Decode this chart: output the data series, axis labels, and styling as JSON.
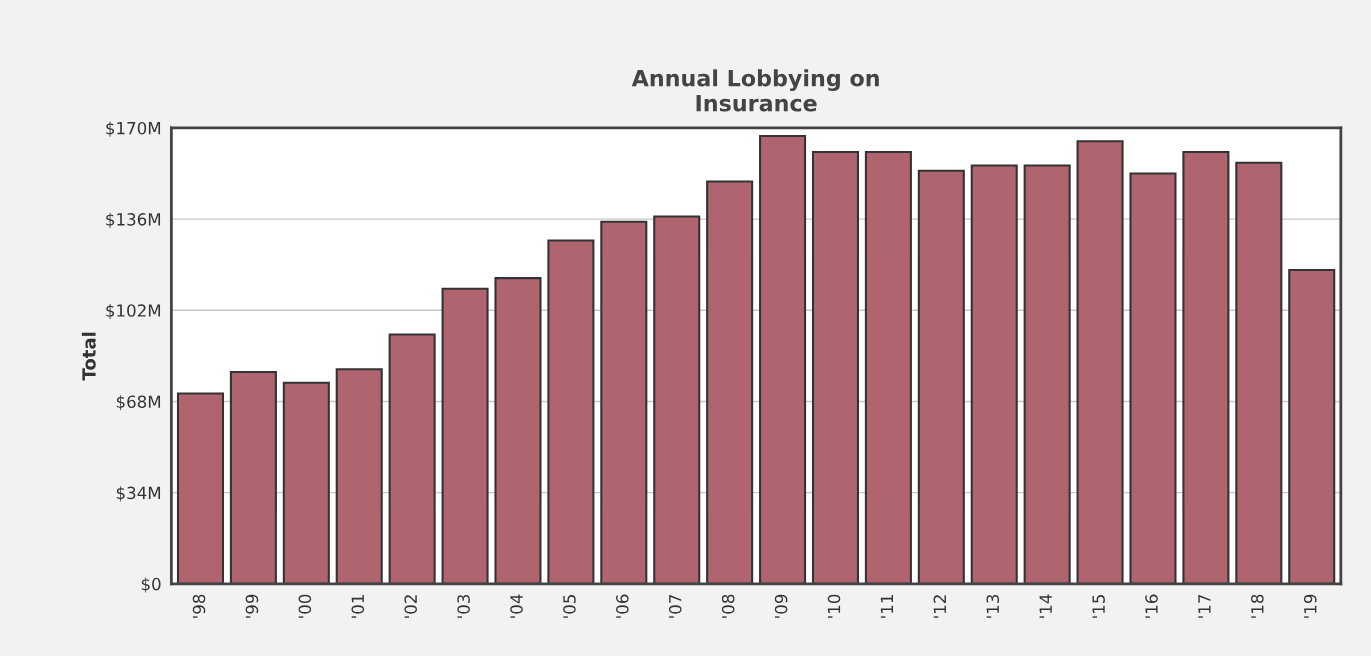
{
  "chart_data": {
    "type": "bar",
    "title": "Annual Lobbying on\nInsurance",
    "ylabel": "Total",
    "categories": [
      "'98",
      "'99",
      "'00",
      "'01",
      "'02",
      "'03",
      "'04",
      "'05",
      "'06",
      "'07",
      "'08",
      "'09",
      "'10",
      "'11",
      "'12",
      "'13",
      "'14",
      "'15",
      "'16",
      "'17",
      "'18",
      "'19"
    ],
    "values": [
      71,
      79,
      75,
      80,
      93,
      110,
      114,
      128,
      135,
      137,
      150,
      167,
      161,
      161,
      154,
      156,
      156,
      165,
      153,
      161,
      157,
      117
    ],
    "color": "#b06470",
    "ylim": [
      0,
      170
    ],
    "yticks": [
      {
        "value": 0,
        "label": "$0"
      },
      {
        "value": 34,
        "label": "$34M"
      },
      {
        "value": 68,
        "label": "$68M"
      },
      {
        "value": 102,
        "label": "$102M"
      },
      {
        "value": 136,
        "label": "$136M"
      },
      {
        "value": 170,
        "label": "$170M"
      }
    ],
    "grid": "y",
    "legend": false
  }
}
